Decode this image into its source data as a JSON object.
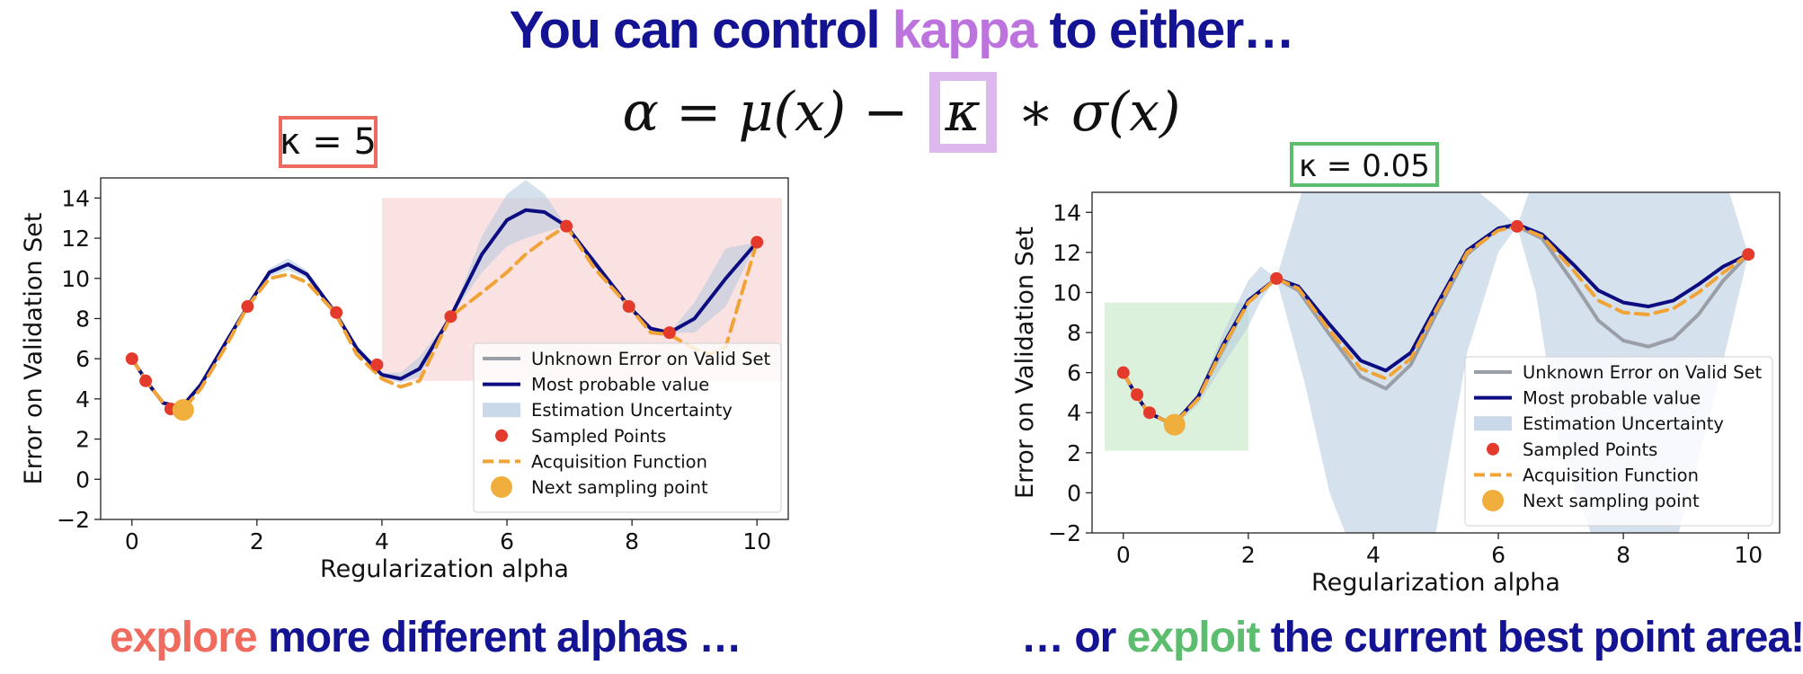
{
  "title": {
    "prefix": "You can control ",
    "highlight": "kappa",
    "suffix": " to either…",
    "highlight_color": "#bd73dd"
  },
  "formula": {
    "left": "α = μ(x) − ",
    "kappa": "κ",
    "right": " ∗ σ(x)"
  },
  "bottom_left": {
    "highlight": "explore",
    "rest": " more different alphas …",
    "highlight_color": "#ee6b5e"
  },
  "bottom_right": {
    "prefix": "… or ",
    "highlight": "exploit",
    "rest": " the current best point area!",
    "highlight_color": "#5cbd6e"
  },
  "colors": {
    "navy": "#131394",
    "true_curve": "#9a9ea6",
    "mean": "#0d0d82",
    "uncertainty": "#b3c9df",
    "points": "#e33a2b",
    "acquisition": "#f0a438",
    "next_point": "#f0ae3c"
  },
  "chart_data": [
    {
      "type": "line",
      "panel_label": "κ = 5",
      "label_box_color": "#ec6a5f",
      "highlight_region": {
        "x": [
          4.0,
          10.4
        ],
        "y": [
          4.9,
          14.0
        ],
        "color": "#fbe2e2"
      },
      "xlabel": "Regularization alpha",
      "ylabel": "Error on Validation Set",
      "xlim": [
        -0.5,
        10.5
      ],
      "ylim": [
        -2,
        15
      ],
      "xticks": [
        0,
        2,
        4,
        6,
        8,
        10
      ],
      "yticks": [
        -2,
        0,
        2,
        4,
        6,
        8,
        10,
        12,
        14
      ],
      "legend": [
        "Unknown Error on Valid Set",
        "Most probable value",
        "Estimation Uncertainty",
        "Sampled Points",
        "Acquisition Function",
        "Next sampling point"
      ],
      "legend_position": "lower right",
      "series": {
        "mean": {
          "x": [
            0,
            0.25,
            0.5,
            0.8,
            1.1,
            1.5,
            1.85,
            2.2,
            2.5,
            2.8,
            3.25,
            3.6,
            4.0,
            4.3,
            4.6,
            5.1,
            5.6,
            6.0,
            6.3,
            6.6,
            6.95,
            7.4,
            7.95,
            8.3,
            8.6,
            9.0,
            9.5,
            10.0
          ],
          "y": [
            6.0,
            4.8,
            3.8,
            3.6,
            4.7,
            6.8,
            8.6,
            10.3,
            10.7,
            10.2,
            8.3,
            6.5,
            5.2,
            5.0,
            5.5,
            8.1,
            11.2,
            12.9,
            13.4,
            13.3,
            12.6,
            10.8,
            8.6,
            7.5,
            7.3,
            8.0,
            10.0,
            11.8
          ]
        },
        "upper": {
          "x": [
            0,
            0.25,
            0.5,
            0.8,
            1.1,
            1.5,
            1.85,
            2.2,
            2.5,
            2.8,
            3.25,
            3.6,
            4.0,
            4.3,
            4.6,
            5.1,
            5.6,
            6.0,
            6.3,
            6.6,
            6.95,
            7.4,
            7.95,
            8.3,
            8.6,
            9.0,
            9.5,
            10.0
          ],
          "y": [
            6.0,
            4.8,
            3.8,
            3.7,
            4.8,
            6.9,
            8.6,
            10.5,
            11.0,
            10.4,
            8.3,
            6.6,
            5.3,
            5.3,
            6.1,
            8.1,
            12.1,
            14.2,
            14.9,
            14.2,
            12.6,
            11.0,
            8.6,
            7.6,
            7.3,
            8.8,
            11.5,
            11.8
          ]
        },
        "lower": {
          "x": [
            0,
            0.25,
            0.5,
            0.8,
            1.1,
            1.5,
            1.85,
            2.2,
            2.5,
            2.8,
            3.25,
            3.6,
            4.0,
            4.3,
            4.6,
            5.1,
            5.6,
            6.0,
            6.3,
            6.6,
            6.95,
            7.4,
            7.95,
            8.3,
            8.6,
            9.0,
            9.5,
            10.0
          ],
          "y": [
            6.0,
            4.8,
            3.8,
            3.5,
            4.6,
            6.7,
            8.6,
            10.1,
            10.4,
            10.0,
            8.3,
            6.4,
            5.1,
            4.8,
            5.1,
            8.1,
            10.3,
            11.6,
            12.0,
            12.3,
            12.6,
            10.6,
            8.6,
            7.4,
            7.3,
            7.3,
            8.6,
            11.8
          ]
        },
        "acquisition": {
          "x": [
            0,
            0.25,
            0.5,
            0.8,
            1.1,
            1.5,
            1.85,
            2.2,
            2.5,
            2.8,
            3.25,
            3.6,
            4.0,
            4.3,
            4.6,
            5.1,
            5.6,
            6.0,
            6.3,
            6.6,
            6.95,
            7.4,
            7.95,
            8.3,
            8.6,
            9.0,
            9.25,
            9.5,
            10.0
          ],
          "y": [
            6.0,
            4.8,
            3.8,
            3.4,
            4.5,
            6.6,
            8.6,
            10.0,
            10.2,
            9.8,
            8.3,
            6.2,
            5.0,
            4.6,
            4.9,
            8.1,
            9.3,
            10.3,
            11.2,
            11.9,
            12.6,
            10.5,
            8.6,
            7.3,
            7.2,
            6.5,
            6.2,
            6.6,
            11.8
          ]
        },
        "sampled_points": {
          "x": [
            0.0,
            0.22,
            0.62,
            1.85,
            3.27,
            3.92,
            5.1,
            6.95,
            7.95,
            8.6,
            10.0
          ],
          "y": [
            6.0,
            4.9,
            3.5,
            8.6,
            8.3,
            5.7,
            8.1,
            12.6,
            8.6,
            7.3,
            11.8
          ]
        },
        "next_point": {
          "x": 0.82,
          "y": 3.45
        }
      }
    },
    {
      "type": "line",
      "panel_label": "κ = 0.05",
      "label_box_color": "#5cbd6e",
      "highlight_region": {
        "x": [
          -0.3,
          2.0
        ],
        "y": [
          2.1,
          9.5
        ],
        "color": "#dcf1dc"
      },
      "xlabel": "Regularization alpha",
      "ylabel": "Error on Validation Set",
      "xlim": [
        -0.5,
        10.5
      ],
      "ylim": [
        -2,
        15
      ],
      "xticks": [
        0,
        2,
        4,
        6,
        8,
        10
      ],
      "yticks": [
        -2,
        0,
        2,
        4,
        6,
        8,
        10,
        12,
        14
      ],
      "legend": [
        "Unknown Error on Valid Set",
        "Most probable value",
        "Estimation Uncertainty",
        "Sampled Points",
        "Acquisition Function",
        "Next sampling point"
      ],
      "legend_position": "lower right",
      "series": {
        "true_curve": {
          "x": [
            0,
            0.2,
            0.4,
            0.8,
            1.2,
            1.6,
            2.0,
            2.45,
            2.8,
            3.3,
            3.8,
            4.2,
            4.6,
            5.0,
            5.5,
            6.0,
            6.3,
            6.7,
            7.2,
            7.6,
            8.0,
            8.4,
            8.8,
            9.2,
            9.6,
            10.0
          ],
          "y": [
            6.0,
            4.9,
            4.0,
            3.4,
            4.8,
            7.2,
            9.6,
            10.7,
            10.1,
            7.9,
            5.8,
            5.2,
            6.4,
            8.9,
            11.9,
            13.2,
            13.3,
            12.7,
            10.5,
            8.6,
            7.6,
            7.3,
            7.7,
            8.9,
            10.6,
            11.9
          ]
        },
        "mean": {
          "x": [
            0,
            0.2,
            0.4,
            0.8,
            1.2,
            1.6,
            2.0,
            2.45,
            2.8,
            3.3,
            3.8,
            4.2,
            4.6,
            5.0,
            5.5,
            6.0,
            6.3,
            6.7,
            7.2,
            7.6,
            8.0,
            8.4,
            8.8,
            9.2,
            9.6,
            10.0
          ],
          "y": [
            6.0,
            4.9,
            4.0,
            3.4,
            4.8,
            7.4,
            9.6,
            10.7,
            10.3,
            8.4,
            6.6,
            6.1,
            7.0,
            9.3,
            12.1,
            13.2,
            13.4,
            12.9,
            11.4,
            10.1,
            9.5,
            9.3,
            9.6,
            10.4,
            11.3,
            11.9
          ]
        },
        "upper": {
          "x": [
            0,
            0.2,
            0.4,
            0.8,
            1.2,
            1.6,
            2.0,
            2.2,
            2.45,
            2.9,
            3.3,
            3.8,
            4.2,
            4.6,
            5.0,
            5.5,
            6.0,
            6.3,
            6.6,
            7.0,
            7.6,
            8.2,
            8.8,
            9.4,
            10.0
          ],
          "y": [
            6.0,
            4.9,
            4.0,
            3.5,
            5.0,
            8.0,
            10.6,
            11.3,
            10.7,
            15.5,
            20.0,
            25.0,
            26.0,
            24.0,
            20.0,
            15.5,
            14.2,
            13.3,
            16.0,
            22.0,
            26.0,
            28.0,
            24.0,
            18.0,
            11.9
          ]
        },
        "lower": {
          "x": [
            0,
            0.2,
            0.4,
            0.8,
            1.2,
            1.6,
            2.0,
            2.2,
            2.45,
            2.9,
            3.3,
            3.8,
            4.2,
            4.6,
            5.0,
            5.5,
            6.0,
            6.3,
            6.6,
            7.0,
            7.6,
            8.2,
            8.8,
            9.4,
            10.0
          ],
          "y": [
            6.0,
            4.9,
            4.0,
            3.3,
            4.4,
            6.4,
            8.3,
            9.6,
            10.7,
            5.5,
            0.0,
            -4.0,
            -6.0,
            -6.0,
            -2.0,
            7.0,
            12.0,
            13.3,
            10.0,
            2.0,
            -3.0,
            -6.0,
            -3.0,
            4.0,
            11.9
          ]
        },
        "acquisition": {
          "x": [
            0,
            0.2,
            0.4,
            0.8,
            1.2,
            1.6,
            2.0,
            2.45,
            2.8,
            3.3,
            3.8,
            4.2,
            4.6,
            5.0,
            5.5,
            6.0,
            6.3,
            6.7,
            7.2,
            7.6,
            8.0,
            8.4,
            8.8,
            9.2,
            9.6,
            10.0
          ],
          "y": [
            6.0,
            4.9,
            4.0,
            3.4,
            4.7,
            7.3,
            9.5,
            10.7,
            10.2,
            8.1,
            6.2,
            5.7,
            6.7,
            9.1,
            12.0,
            13.1,
            13.3,
            12.8,
            11.1,
            9.6,
            9.0,
            8.9,
            9.2,
            10.0,
            11.0,
            11.9
          ]
        },
        "sampled_points": {
          "x": [
            0.0,
            0.22,
            0.42,
            2.45,
            6.3,
            10.0
          ],
          "y": [
            6.0,
            4.9,
            4.0,
            10.7,
            13.3,
            11.9
          ]
        },
        "next_point": {
          "x": 0.82,
          "y": 3.4
        }
      }
    }
  ]
}
